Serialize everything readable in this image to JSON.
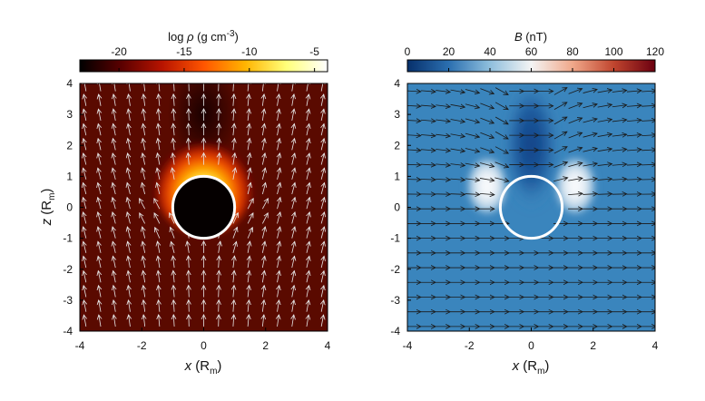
{
  "chart_data": [
    {
      "type": "heatmap",
      "panel": "left",
      "colorbar": {
        "label_text": "log ",
        "label_symbol": "ρ",
        "label_units": " (g cm",
        "label_exp": "-3",
        "label_close": ")",
        "ticks": [
          "-20",
          "-15",
          "-10",
          "-5"
        ],
        "tick_values": [
          -20,
          -15,
          -10,
          -5
        ],
        "range": [
          -23,
          -4
        ],
        "colormap": [
          "#000000",
          "#5a0000",
          "#b81400",
          "#ff5500",
          "#ffb400",
          "#ffff7a",
          "#ffffff"
        ]
      },
      "xlabel": {
        "main": "x",
        "unit_open": " (R",
        "unit_sub": "m",
        "unit_close": ")"
      },
      "ylabel": {
        "main": "z",
        "unit_open": " (R",
        "unit_sub": "m",
        "unit_close": ")"
      },
      "xlim": [
        -4,
        4
      ],
      "ylim": [
        -4,
        4
      ],
      "xticks": [
        "-4",
        "-2",
        "0",
        "2",
        "4"
      ],
      "yticks": [
        "4",
        "3",
        "2",
        "1",
        "0",
        "-1",
        "-2",
        "-3",
        "-4"
      ],
      "background_color": "#5a0a00",
      "planet": {
        "center": [
          0,
          0
        ],
        "radius": 1,
        "fill": "#050000",
        "edge": "#ffffff"
      },
      "field_arrows": "upward flow vectors, white"
    },
    {
      "type": "heatmap",
      "panel": "right",
      "colorbar": {
        "label_symbol": "B",
        "label_units": " (nT)",
        "ticks": [
          "0",
          "20",
          "40",
          "60",
          "80",
          "100",
          "120"
        ],
        "tick_values": [
          0,
          20,
          40,
          60,
          80,
          100,
          120
        ],
        "range": [
          0,
          120
        ],
        "colormap": [
          "#07306b",
          "#2b6fb0",
          "#8fbfdd",
          "#f4f4f4",
          "#f0a88a",
          "#c0452e",
          "#6b0010"
        ]
      },
      "xlabel": {
        "main": "x",
        "unit_open": " (R",
        "unit_sub": "m",
        "unit_close": ")"
      },
      "xlim": [
        -4,
        4
      ],
      "ylim": [
        -4,
        4
      ],
      "xticks": [
        "-4",
        "-2",
        "0",
        "2",
        "4"
      ],
      "yticks": [
        "4",
        "3",
        "2",
        "1",
        "0",
        "-1",
        "-2",
        "-3",
        "-4"
      ],
      "background_color": "#3a85bd",
      "planet": {
        "center": [
          0,
          0
        ],
        "radius": 1,
        "fill": "none",
        "edge": "#ffffff"
      },
      "field_arrows": "magnetic field vectors, black, draping around planet"
    }
  ]
}
